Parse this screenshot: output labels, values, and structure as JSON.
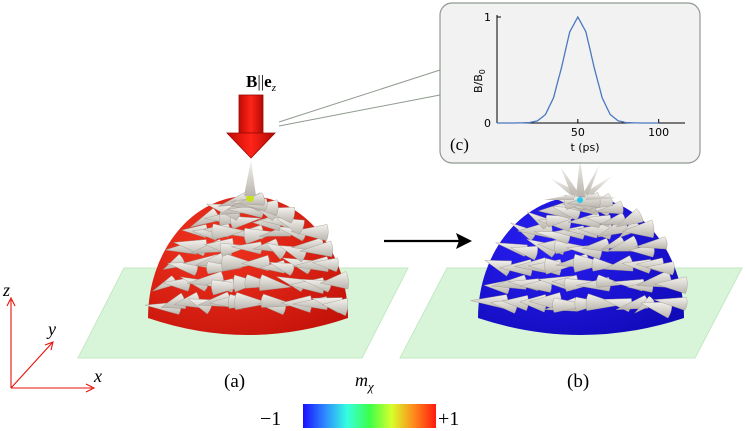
{
  "field_label": {
    "bold_b": "B",
    "parallel": "||",
    "bold_e": "e",
    "subscript": "z"
  },
  "panel_labels": {
    "a": "(a)",
    "b": "(b)",
    "c": "(c)"
  },
  "axes_labels": {
    "x": "x",
    "y": "y",
    "z": "z"
  },
  "colorbar": {
    "label_main": "m",
    "label_sub": "χ",
    "min_label": "−1",
    "max_label": "+1",
    "stops": [
      "#1a10ff",
      "#2f8bff",
      "#36ffdf",
      "#3cff4a",
      "#d7ff2b",
      "#ff8a1a",
      "#ff1a10"
    ]
  },
  "colors": {
    "hemisphere_a": "#e0190e",
    "hemisphere_b": "#1b10e6",
    "plane": "#d8f5d8",
    "arrow_field": "#e81208",
    "axes": "#e81208",
    "cones": "#e7e3dc",
    "inset_line": "#4a78c0"
  },
  "chart_data": {
    "type": "line",
    "title": "",
    "xlabel": "t (ps)",
    "ylabel": "B/B_0",
    "ylabel_parts": {
      "main": "B/B",
      "sub": "0"
    },
    "xlim": [
      0,
      100
    ],
    "ylim": [
      0,
      1
    ],
    "xticks": [
      50,
      100
    ],
    "xtick_labels": [
      "50",
      "100"
    ],
    "yticks": [
      0,
      1
    ],
    "ytick_labels": [
      "0",
      "1"
    ],
    "series": [
      {
        "x": [
          0,
          5,
          10,
          15,
          20,
          25,
          30,
          35,
          40,
          45,
          50,
          55,
          60,
          65,
          70,
          75,
          80,
          85,
          90,
          95,
          100
        ],
        "y": [
          0,
          0.0,
          0.0,
          0.001,
          0.004,
          0.02,
          0.08,
          0.24,
          0.53,
          0.86,
          1.0,
          0.86,
          0.53,
          0.24,
          0.08,
          0.02,
          0.004,
          0.001,
          0.0,
          0.0,
          0.0
        ]
      }
    ]
  }
}
